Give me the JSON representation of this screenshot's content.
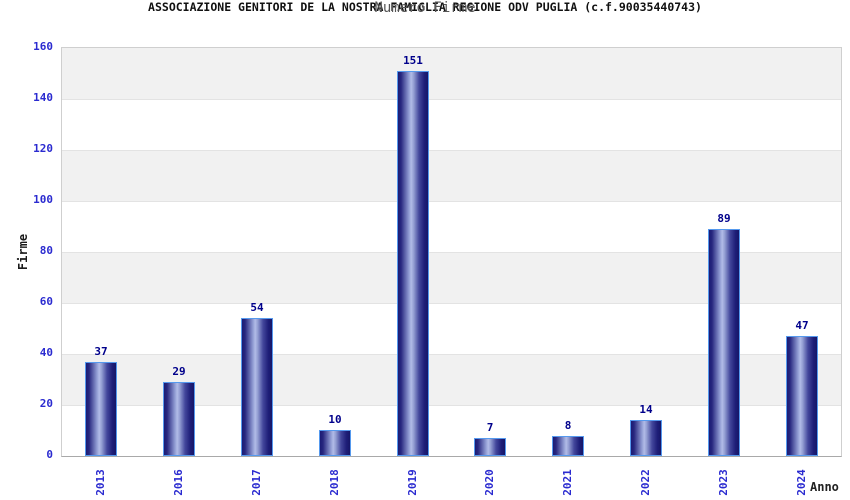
{
  "chart_data": {
    "type": "bar",
    "title": "ASSOCIAZIONE GENITORI DE LA NOSTRA FAMIGLIA REGIONE ODV PUGLIA (c.f.90035440743)",
    "subtitle": "Numero Firme",
    "xlabel": "Anno",
    "ylabel": "Firme",
    "categories": [
      "2013",
      "2016",
      "2017",
      "2018",
      "2019",
      "2020",
      "2021",
      "2022",
      "2023",
      "2024"
    ],
    "values": [
      37,
      29,
      54,
      10,
      151,
      7,
      8,
      14,
      89,
      47
    ],
    "ylim": [
      0,
      160
    ],
    "ytick_step": 20,
    "yticks": [
      0,
      20,
      40,
      60,
      80,
      100,
      120,
      140,
      160
    ],
    "grid": "alternating-horizontal-bands",
    "legend_position": "none",
    "colors": {
      "tick_label": "#2b2bd0",
      "value_label": "#00008b",
      "bar_edge_dark": "#1b1b74",
      "bar_center_light": "#b1bbe7",
      "bar_border": "#5599ee",
      "band_gray": "#f1f1f1",
      "band_white": "#ffffff",
      "gridline": "#e3e3e3",
      "plot_border": "#cfcfcf",
      "axis_line": "#a9a9a9",
      "title": "#111111",
      "subtitle": "#555555",
      "axis_title": "#1a1a1a"
    }
  }
}
